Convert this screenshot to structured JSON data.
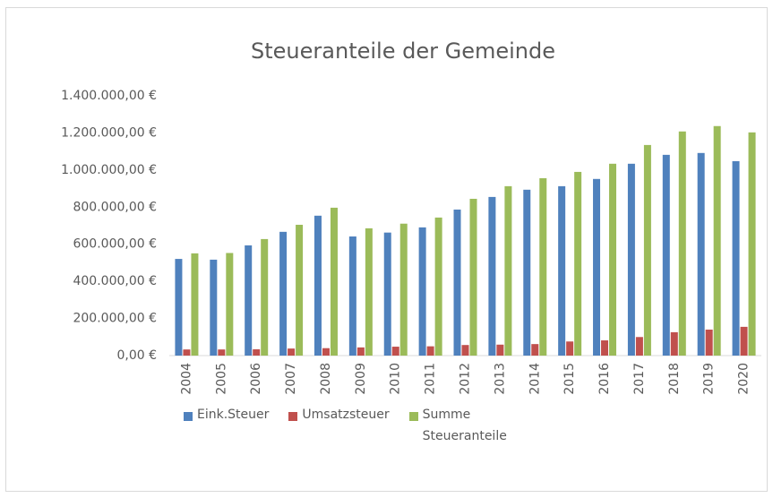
{
  "chart_data": {
    "type": "bar",
    "title": "Steueranteile der Gemeinde",
    "categories": [
      "2004",
      "2005",
      "2006",
      "2007",
      "2008",
      "2009",
      "2010",
      "2011",
      "2012",
      "2013",
      "2014",
      "2015",
      "2016",
      "2017",
      "2018",
      "2019",
      "2020"
    ],
    "series": [
      {
        "name": "Eink.Steuer",
        "color": "#4f81bd",
        "values": [
          521000,
          517000,
          594000,
          667000,
          754000,
          642000,
          663000,
          691000,
          787000,
          855000,
          894000,
          913000,
          952000,
          1034000,
          1082000,
          1092000,
          1048000
        ]
      },
      {
        "name": "Umsatzsteuer",
        "color": "#c0504d",
        "values": [
          33000,
          33000,
          34000,
          38000,
          40000,
          44000,
          48000,
          50000,
          57000,
          59000,
          62000,
          76000,
          82000,
          100000,
          126000,
          140000,
          155000
        ]
      },
      {
        "name": "Summe Steueranteile",
        "color": "#9bbb59",
        "values": [
          551000,
          553000,
          628000,
          705000,
          797000,
          686000,
          711000,
          744000,
          845000,
          913000,
          956000,
          990000,
          1034000,
          1135000,
          1208000,
          1237000,
          1203000
        ]
      }
    ],
    "ylim": [
      0,
      1400000
    ],
    "yticks": [
      {
        "value": 0,
        "label": "0,00 €"
      },
      {
        "value": 200000,
        "label": "200.000,00 €"
      },
      {
        "value": 400000,
        "label": "400.000,00 €"
      },
      {
        "value": 600000,
        "label": "600.000,00 €"
      },
      {
        "value": 800000,
        "label": "800.000,00 €"
      },
      {
        "value": 1000000,
        "label": "1.000.000,00 €"
      },
      {
        "value": 1200000,
        "label": "1.200.000,00 €"
      },
      {
        "value": 1400000,
        "label": "1.400.000,00 €"
      }
    ],
    "grid": false,
    "legend": "bottom"
  }
}
